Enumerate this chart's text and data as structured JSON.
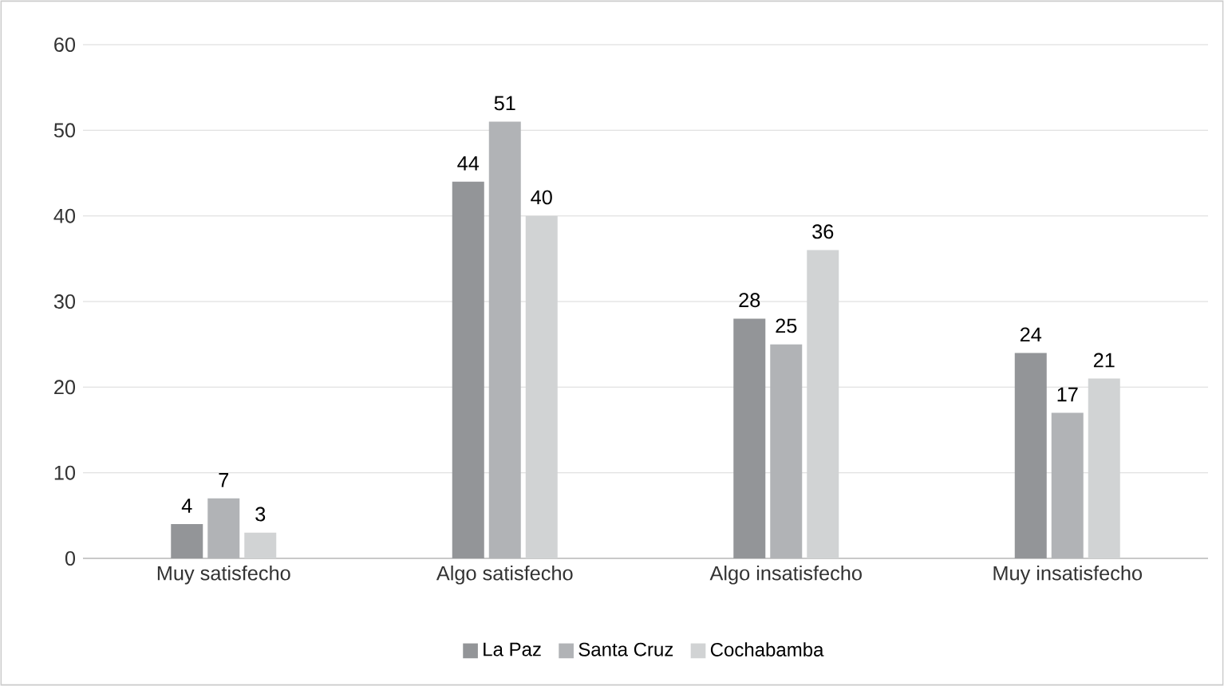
{
  "chart_data": {
    "type": "bar",
    "categories": [
      "Muy satisfecho",
      "Algo satisfecho",
      "Algo insatisfecho",
      "Muy insatisfecho"
    ],
    "series": [
      {
        "name": "La Paz",
        "color": "#939598",
        "values": [
          4,
          44,
          28,
          24
        ]
      },
      {
        "name": "Santa Cruz",
        "color": "#b1b3b6",
        "values": [
          7,
          51,
          25,
          17
        ]
      },
      {
        "name": "Cochabamba",
        "color": "#d1d3d4",
        "values": [
          3,
          40,
          36,
          21
        ]
      }
    ],
    "ylim": [
      0,
      60
    ],
    "yticks": [
      0,
      10,
      20,
      30,
      40,
      50,
      60
    ],
    "grid": "y",
    "legend": "bottom",
    "data_labels": true
  }
}
